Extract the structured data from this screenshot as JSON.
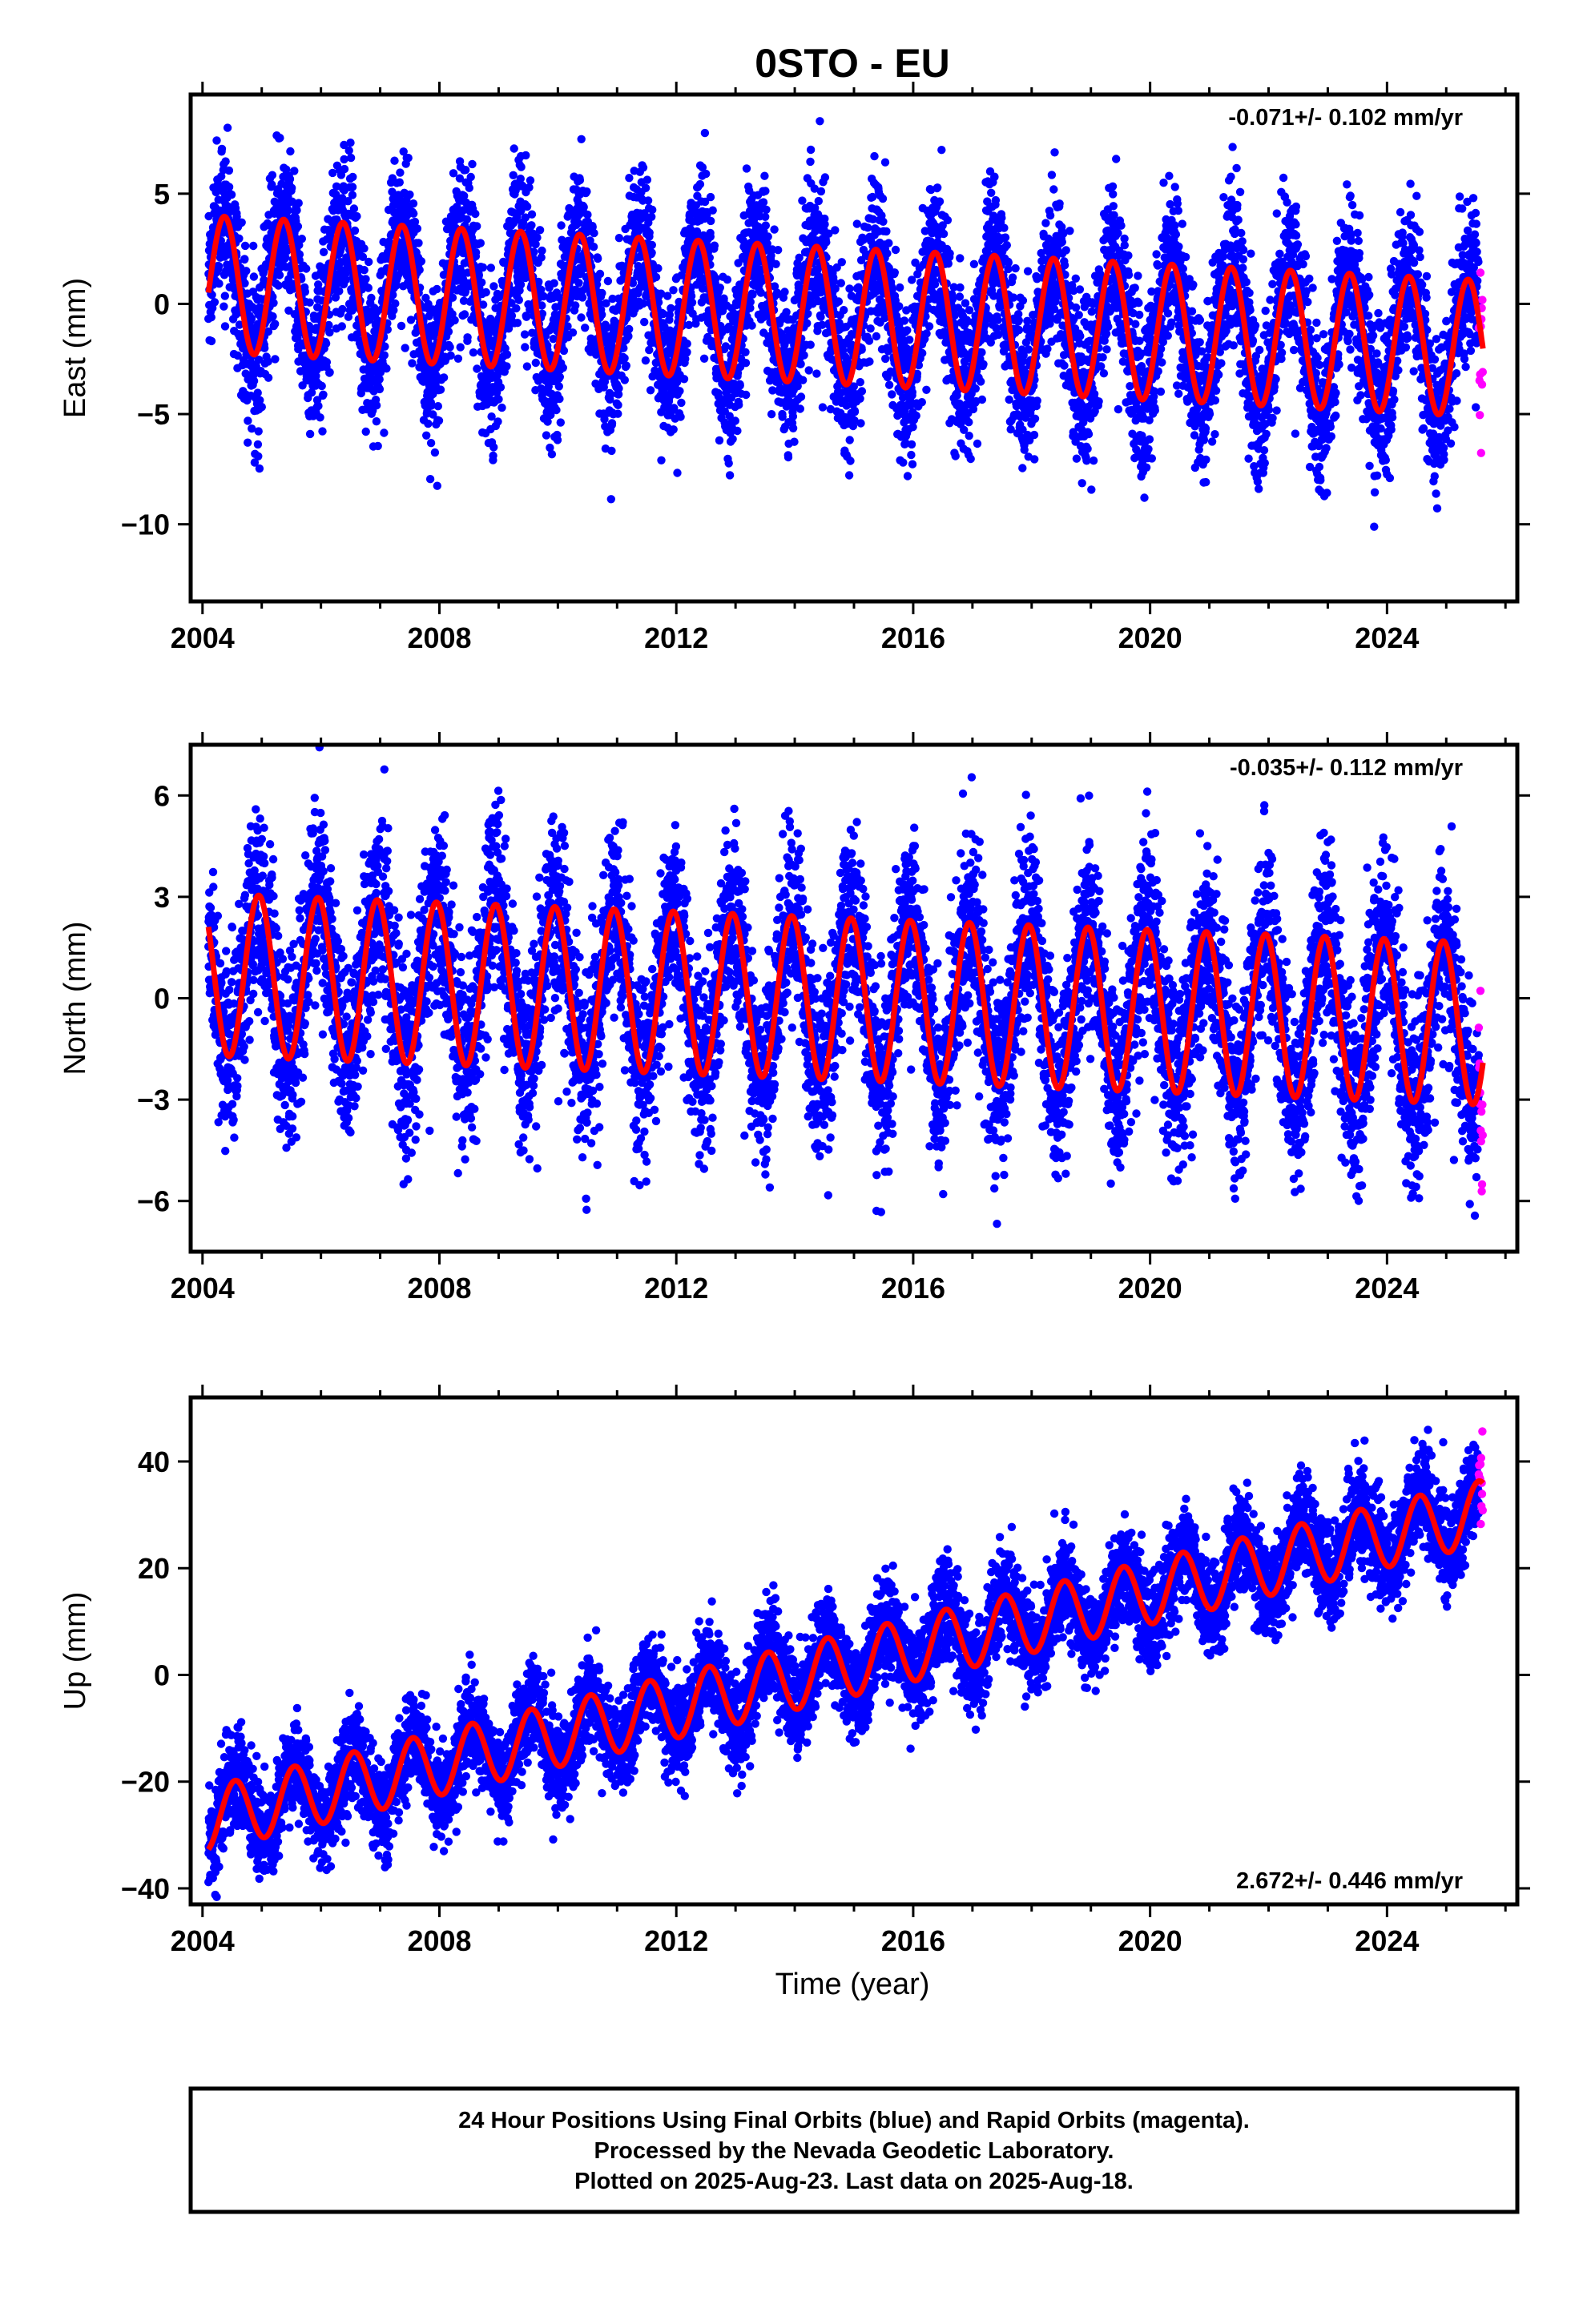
{
  "chart_data": [
    {
      "type": "scatter",
      "title": "0STO - EU",
      "ylabel": "East (mm)",
      "xlabel": "",
      "rate_text": "-0.071+/- 0.102 mm/yr",
      "rate_position": "top-right",
      "xlim": [
        2003.8,
        2026.2
      ],
      "ylim": [
        -13.5,
        9.5
      ],
      "xticks": [
        2004,
        2008,
        2012,
        2016,
        2020,
        2024
      ],
      "yticks": [
        -10,
        -5,
        0,
        5
      ],
      "grid": false,
      "model": {
        "offset": 0.0,
        "rate": -0.071,
        "amp_start": 3.1,
        "amp_end": 3.1,
        "center_start": 0.9,
        "center_end": -0.5,
        "peak_phase": 0.37,
        "scatter_sigma": 1.8
      },
      "series": [
        {
          "name": "Final Orbits",
          "color": "#0000ff",
          "x_range": [
            2004.1,
            2025.55
          ]
        },
        {
          "name": "Rapid Orbits",
          "color": "#ff00ff",
          "x_range": [
            2025.55,
            2025.62
          ]
        },
        {
          "name": "Model fit",
          "color": "#ff0000"
        }
      ]
    },
    {
      "type": "scatter",
      "title": "",
      "ylabel": "North (mm)",
      "xlabel": "",
      "rate_text": "-0.035+/- 0.112 mm/yr",
      "rate_position": "top-right",
      "xlim": [
        2003.8,
        2026.2
      ],
      "ylim": [
        -7.5,
        7.5
      ],
      "xticks": [
        2004,
        2008,
        2012,
        2016,
        2020,
        2024
      ],
      "yticks": [
        -6,
        -3,
        0,
        3,
        6
      ],
      "grid": false,
      "model": {
        "offset": 0.0,
        "rate": -0.035,
        "amp_start": 2.4,
        "amp_end": 2.4,
        "center_start": 0.7,
        "center_end": 0.0,
        "peak_phase": 0.95,
        "scatter_sigma": 1.4
      },
      "series": [
        {
          "name": "Final Orbits",
          "color": "#0000ff",
          "x_range": [
            2004.1,
            2025.55
          ]
        },
        {
          "name": "Rapid Orbits",
          "color": "#ff00ff",
          "x_range": [
            2025.55,
            2025.62
          ]
        },
        {
          "name": "Model fit",
          "color": "#ff0000"
        }
      ]
    },
    {
      "type": "scatter",
      "title": "",
      "ylabel": "Up (mm)",
      "xlabel": "Time (year)",
      "rate_text": "2.672+/- 0.446 mm/yr",
      "rate_position": "bottom-right",
      "xlim": [
        2003.8,
        2026.2
      ],
      "ylim": [
        -43,
        52
      ],
      "xticks": [
        2004,
        2008,
        2012,
        2016,
        2020,
        2024
      ],
      "yticks": [
        -40,
        -20,
        0,
        20,
        40
      ],
      "grid": false,
      "model": {
        "offset": -27.0,
        "rate": 2.672,
        "amp_start": 6.0,
        "amp_end": 6.0,
        "center_start": 0.0,
        "center_end": 0.0,
        "peak_phase": 0.55,
        "scatter_sigma": 4.5
      },
      "series": [
        {
          "name": "Final Orbits",
          "color": "#0000ff",
          "x_range": [
            2004.1,
            2025.55
          ]
        },
        {
          "name": "Rapid Orbits",
          "color": "#ff00ff",
          "x_range": [
            2025.55,
            2025.62
          ]
        },
        {
          "name": "Model fit",
          "color": "#ff0000"
        }
      ]
    }
  ],
  "caption": {
    "line1": "24 Hour Positions Using Final Orbits (blue) and Rapid Orbits (magenta).",
    "line2": "Processed by the Nevada Geodetic Laboratory.",
    "line3": "Plotted on 2025-Aug-23. Last data on 2025-Aug-18."
  },
  "colors": {
    "final": "#0000ff",
    "rapid": "#ff00ff",
    "model": "#ff0000",
    "frame": "#000000"
  }
}
